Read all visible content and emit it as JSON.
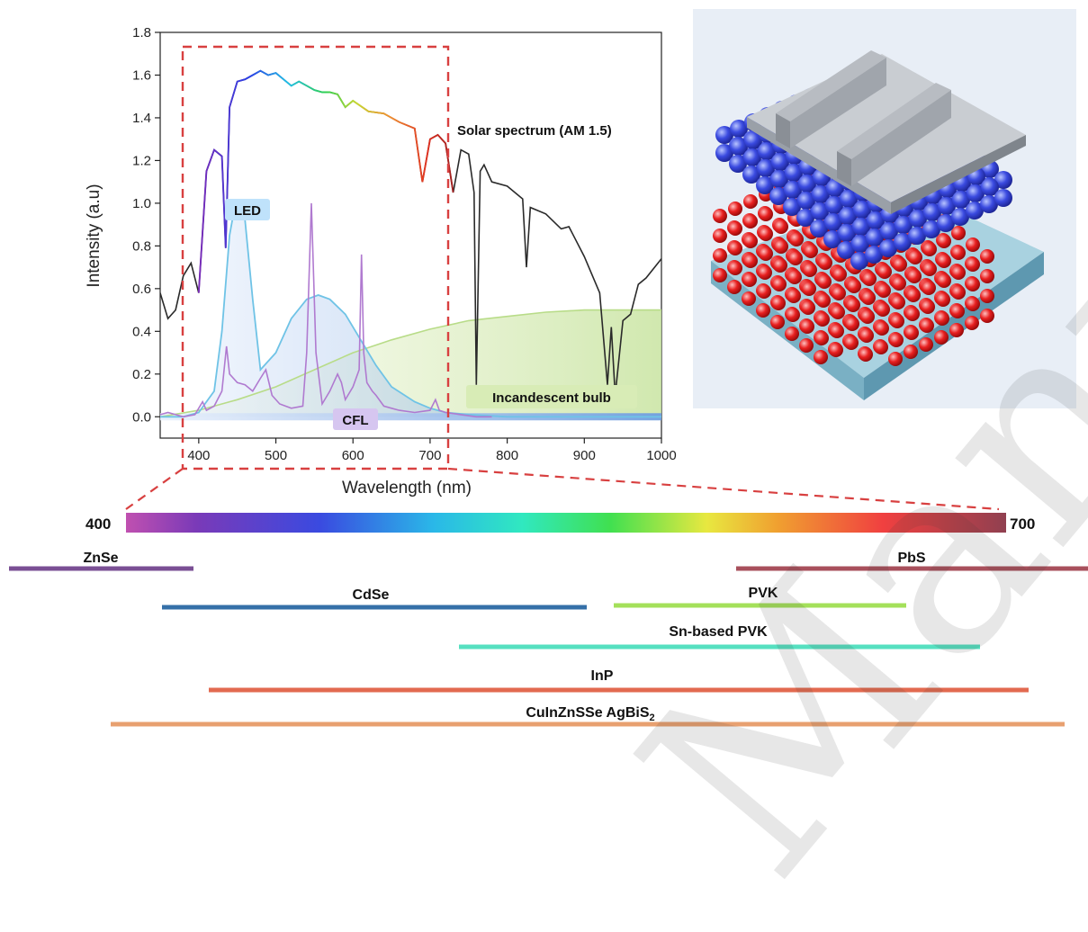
{
  "chart_data": {
    "type": "line",
    "xlabel": "Wavelength (nm)",
    "ylabel": "Intensity (a.u)",
    "xlim": [
      350,
      1000
    ],
    "ylim": [
      -0.1,
      1.8
    ],
    "x_ticks": [
      "400",
      "500",
      "600",
      "700",
      "800",
      "900",
      "1000"
    ],
    "y_ticks": [
      "0.0",
      "0.2",
      "0.4",
      "0.6",
      "0.8",
      "1.0",
      "1.2",
      "1.4",
      "1.6",
      "1.8"
    ],
    "annotations": {
      "solar": "Solar spectrum (AM 1.5)",
      "led": "LED",
      "cfl": "CFL",
      "incandescent": "Incandescent bulb"
    },
    "series": [
      {
        "key": "solar",
        "x": [
          350,
          360,
          370,
          380,
          390,
          400,
          410,
          420,
          430,
          435,
          440,
          450,
          460,
          470,
          480,
          490,
          500,
          510,
          520,
          530,
          540,
          550,
          560,
          570,
          580,
          590,
          600,
          620,
          640,
          660,
          680,
          690,
          700,
          710,
          720,
          730,
          740,
          750,
          757,
          760,
          765,
          770,
          780,
          800,
          820,
          825,
          830,
          850,
          870,
          880,
          900,
          920,
          930,
          935,
          940,
          950,
          960,
          970,
          980,
          1000
        ],
        "y": [
          0.58,
          0.46,
          0.5,
          0.66,
          0.72,
          0.58,
          1.15,
          1.25,
          1.22,
          0.79,
          1.45,
          1.57,
          1.58,
          1.6,
          1.62,
          1.6,
          1.61,
          1.58,
          1.55,
          1.57,
          1.55,
          1.53,
          1.52,
          1.52,
          1.51,
          1.45,
          1.48,
          1.43,
          1.42,
          1.38,
          1.35,
          1.1,
          1.3,
          1.32,
          1.28,
          1.05,
          1.25,
          1.23,
          1.05,
          0.15,
          1.15,
          1.18,
          1.1,
          1.08,
          1.02,
          0.7,
          0.98,
          0.95,
          0.88,
          0.89,
          0.75,
          0.58,
          0.15,
          0.42,
          0.1,
          0.45,
          0.48,
          0.62,
          0.65,
          0.74
        ]
      },
      {
        "key": "led",
        "x": [
          350,
          380,
          400,
          420,
          430,
          440,
          445,
          452,
          460,
          470,
          480,
          500,
          520,
          540,
          555,
          570,
          590,
          610,
          630,
          650,
          680,
          700,
          720,
          750,
          800,
          1000
        ],
        "y": [
          0.0,
          0.0,
          0.02,
          0.12,
          0.4,
          0.85,
          0.95,
          1.0,
          0.92,
          0.55,
          0.22,
          0.3,
          0.46,
          0.55,
          0.57,
          0.55,
          0.48,
          0.36,
          0.24,
          0.14,
          0.07,
          0.04,
          0.02,
          0.01,
          0.0,
          0.0
        ]
      },
      {
        "key": "cfl",
        "x": [
          350,
          360,
          370,
          380,
          395,
          405,
          410,
          420,
          430,
          436,
          440,
          450,
          460,
          470,
          480,
          487,
          495,
          505,
          520,
          535,
          540,
          546,
          552,
          560,
          570,
          580,
          585,
          590,
          600,
          608,
          611,
          614,
          618,
          625,
          630,
          640,
          650,
          660,
          680,
          700,
          707,
          712,
          720,
          740,
          760,
          780
        ],
        "y": [
          0.01,
          0.02,
          0.01,
          0.0,
          0.01,
          0.07,
          0.03,
          0.05,
          0.12,
          0.33,
          0.2,
          0.16,
          0.15,
          0.12,
          0.18,
          0.22,
          0.1,
          0.06,
          0.04,
          0.05,
          0.3,
          1.0,
          0.3,
          0.06,
          0.12,
          0.2,
          0.16,
          0.08,
          0.14,
          0.22,
          0.76,
          0.3,
          0.16,
          0.12,
          0.1,
          0.05,
          0.04,
          0.03,
          0.02,
          0.03,
          0.08,
          0.03,
          0.02,
          0.01,
          0.0,
          0.0
        ]
      },
      {
        "key": "incandescent",
        "x": [
          350,
          400,
          450,
          500,
          550,
          600,
          650,
          700,
          750,
          800,
          850,
          900,
          950,
          1000
        ],
        "y": [
          0.0,
          0.03,
          0.08,
          0.14,
          0.22,
          0.3,
          0.36,
          0.41,
          0.45,
          0.47,
          0.49,
          0.5,
          0.5,
          0.5
        ]
      }
    ]
  },
  "spectrum_bar": {
    "start_label": "400",
    "end_label": "700"
  },
  "materials": [
    {
      "name": "ZnSe",
      "color": "#7a4f94"
    },
    {
      "name": "PbS",
      "color": "#a8505c"
    },
    {
      "name": "CdSe",
      "color": "#3570a8"
    },
    {
      "name": "PVK",
      "color": "#a4e05a"
    },
    {
      "name": "Sn-based PVK",
      "color": "#56e0c0"
    },
    {
      "name": "InP",
      "color": "#e26a50"
    },
    {
      "name": "CuInZnSSe AgBiS",
      "subscript": "2",
      "color": "#e8a070"
    }
  ],
  "watermark": "Manuscript"
}
